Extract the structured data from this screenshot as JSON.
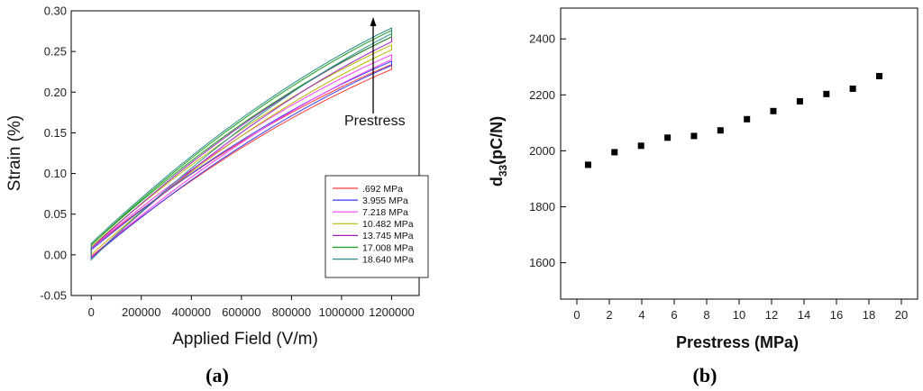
{
  "chart_data": [
    {
      "panel": "a",
      "type": "line",
      "title": "",
      "xlabel": "Applied Field (V/m)",
      "ylabel": "Strain (%)",
      "xlim": [
        -80000,
        1310000
      ],
      "ylim": [
        -0.05,
        0.3
      ],
      "xticks": [
        0,
        200000,
        400000,
        600000,
        800000,
        1000000,
        1200000
      ],
      "xtick_labels": [
        "0",
        "200000",
        "400000",
        "600000",
        "800000",
        "1000000",
        "1200000"
      ],
      "yticks": [
        -0.05,
        0.0,
        0.05,
        0.1,
        0.15,
        0.2,
        0.25,
        0.3
      ],
      "ytick_labels": [
        "-0.05",
        "0.00",
        "0.05",
        "0.10",
        "0.15",
        "0.20",
        "0.25",
        "0.30"
      ],
      "legend_position": "lower-right",
      "annotation": {
        "text": "Prestress",
        "arrow": "upward"
      },
      "series": [
        {
          "name": ".692 MPa",
          "color": "#ff3b3b",
          "x": [
            0,
            1200000
          ],
          "lower": [
            -0.002,
            0.228
          ],
          "upper": [
            0.008,
            0.234
          ]
        },
        {
          "name": "3.955 MPa",
          "color": "#3a3af0",
          "x": [
            0,
            1200000
          ],
          "lower": [
            -0.004,
            0.233
          ],
          "upper": [
            0.006,
            0.238
          ]
        },
        {
          "name": "7.218 MPa",
          "color": "#ff3dff",
          "x": [
            0,
            1200000
          ],
          "lower": [
            -0.003,
            0.24
          ],
          "upper": [
            0.008,
            0.246
          ]
        },
        {
          "name": "10.482 MPa",
          "color": "#b8b800",
          "x": [
            0,
            1200000
          ],
          "lower": [
            0.0,
            0.252
          ],
          "upper": [
            0.01,
            0.258
          ]
        },
        {
          "name": "13.745 MPa",
          "color": "#a020c0",
          "x": [
            0,
            1200000
          ],
          "lower": [
            -0.004,
            0.262
          ],
          "upper": [
            0.008,
            0.268
          ]
        },
        {
          "name": "17.008 MPa",
          "color": "#1a9c1a",
          "x": [
            0,
            1200000
          ],
          "lower": [
            0.012,
            0.268
          ],
          "upper": [
            0.012,
            0.276
          ]
        },
        {
          "name": "18.640 MPa",
          "color": "#2a8c8c",
          "x": [
            0,
            1200000
          ],
          "lower": [
            -0.006,
            0.272
          ],
          "upper": [
            0.014,
            0.279
          ]
        }
      ]
    },
    {
      "panel": "b",
      "type": "scatter",
      "title": "",
      "xlabel": "Prestress (MPa)",
      "ylabel": "d33(pC/N)",
      "ylabel_main": "d",
      "ylabel_sub": "33",
      "ylabel_rest": "(pC/N)",
      "xlim": [
        -1,
        21
      ],
      "ylim": [
        1470,
        2510
      ],
      "xticks": [
        0,
        2,
        4,
        6,
        8,
        10,
        12,
        14,
        16,
        18,
        20
      ],
      "xtick_labels": [
        "0",
        "2",
        "4",
        "6",
        "8",
        "10",
        "12",
        "14",
        "16",
        "18",
        "20"
      ],
      "yticks": [
        1600,
        1800,
        2000,
        2200,
        2400
      ],
      "ytick_labels": [
        "1600",
        "1800",
        "2000",
        "2200",
        "2400"
      ],
      "x": [
        0.692,
        2.32,
        3.955,
        5.59,
        7.218,
        8.85,
        10.482,
        12.11,
        13.745,
        15.38,
        17.008,
        18.64
      ],
      "y": [
        1950,
        1995,
        2018,
        2047,
        2053,
        2073,
        2113,
        2142,
        2177,
        2203,
        2222,
        2267
      ],
      "marker": "square",
      "color": "#000000"
    }
  ],
  "captions": {
    "a": "(a)",
    "b": "(b)"
  }
}
